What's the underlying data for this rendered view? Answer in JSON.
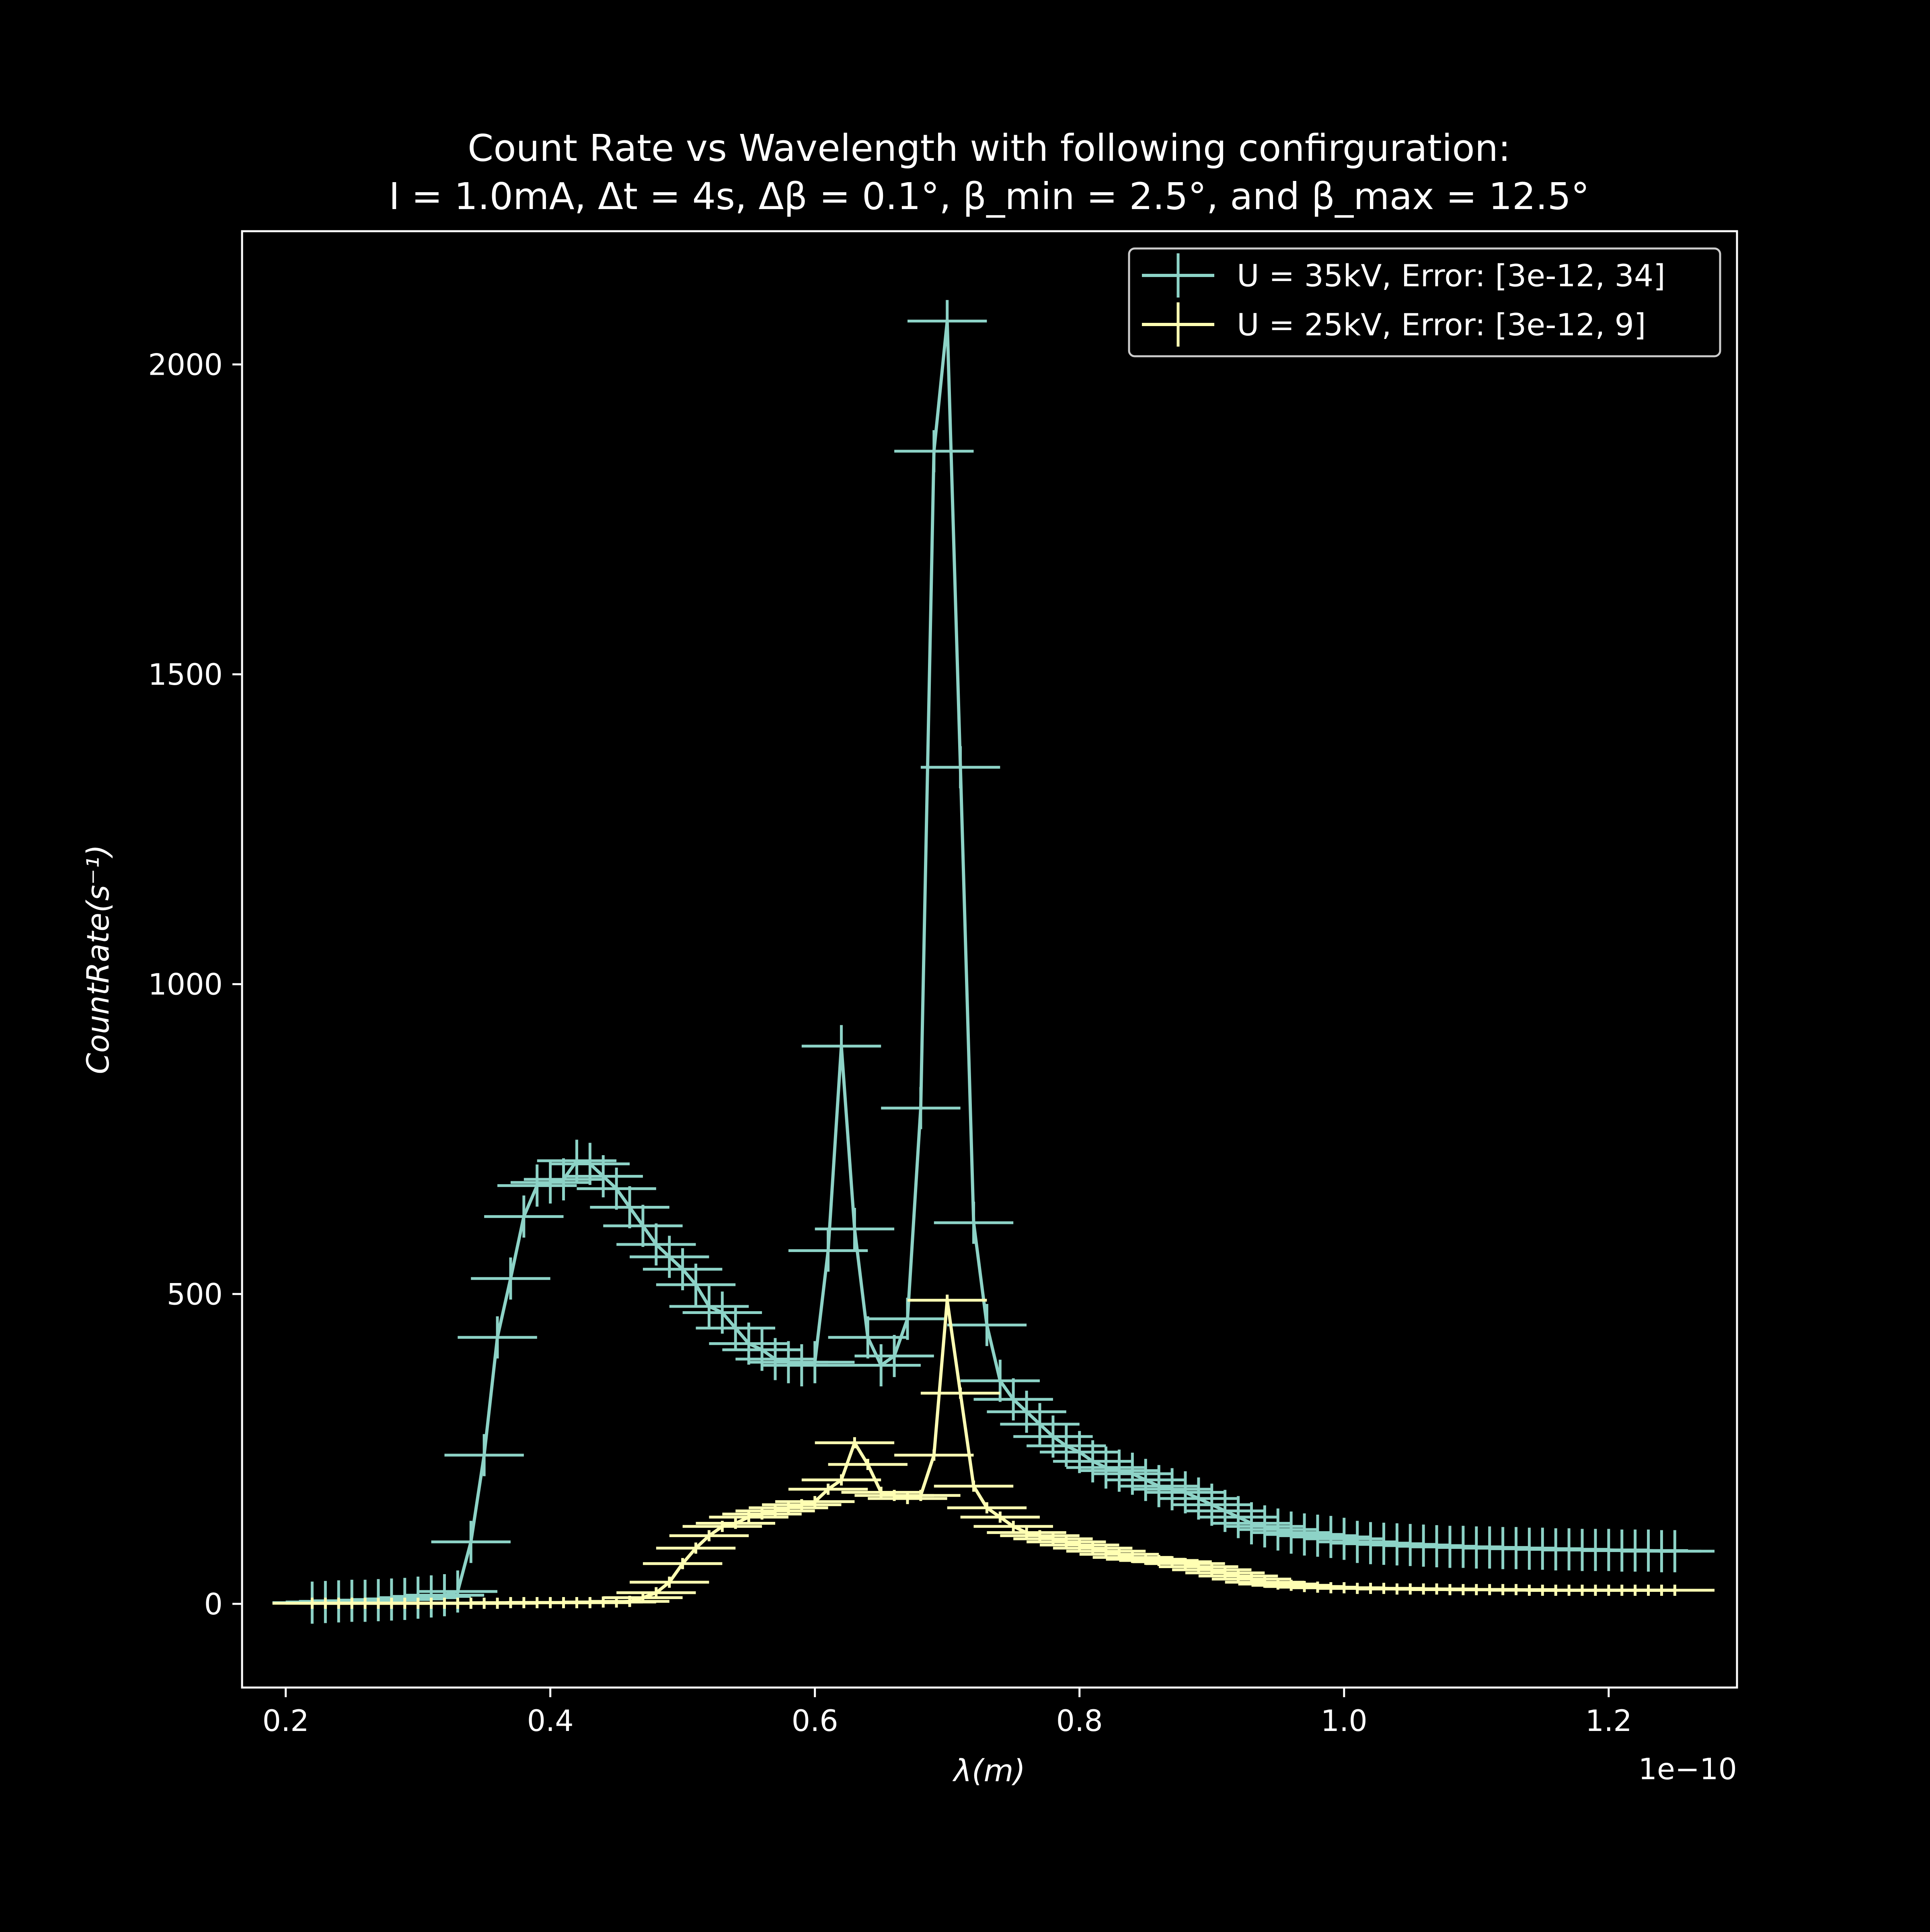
{
  "chart_data": {
    "type": "line",
    "title_line1": "Count Rate vs Wavelength with following confirguration:",
    "title_line2": "I = 1.0mA, Δt = 4s, Δβ = 0.1°, β_min = 2.5°,  and β_max = 12.5°",
    "xlabel": "λ(m)",
    "ylabel": "CountRate(s⁻¹)",
    "x_offset_label": "1e−10",
    "xlim": [
      0.167,
      1.297
    ],
    "ylim": [
      -135,
      2215
    ],
    "x_ticks": [
      0.2,
      0.4,
      0.6,
      0.8,
      1.0,
      1.2
    ],
    "x_tick_labels": [
      "0.2",
      "0.4",
      "0.6",
      "0.8",
      "1.0",
      "1.2"
    ],
    "y_ticks": [
      0,
      500,
      1000,
      1500,
      2000
    ],
    "y_tick_labels": [
      "0",
      "500",
      "1000",
      "1500",
      "2000"
    ],
    "grid": false,
    "legend_position": "top-right",
    "x_error": 0.03,
    "series": [
      {
        "name": "U = 35kV, Error: [3e-12, 34]",
        "color": "#8dd3c7",
        "y_error": 34,
        "x": [
          0.22,
          0.23,
          0.24,
          0.25,
          0.26,
          0.27,
          0.28,
          0.29,
          0.3,
          0.31,
          0.32,
          0.33,
          0.34,
          0.35,
          0.36,
          0.37,
          0.38,
          0.39,
          0.4,
          0.41,
          0.42,
          0.43,
          0.44,
          0.45,
          0.46,
          0.47,
          0.48,
          0.49,
          0.5,
          0.51,
          0.52,
          0.53,
          0.54,
          0.55,
          0.56,
          0.57,
          0.58,
          0.59,
          0.6,
          0.61,
          0.62,
          0.63,
          0.64,
          0.65,
          0.66,
          0.67,
          0.68,
          0.69,
          0.7,
          0.71,
          0.72,
          0.73,
          0.74,
          0.75,
          0.76,
          0.77,
          0.78,
          0.79,
          0.8,
          0.81,
          0.82,
          0.83,
          0.84,
          0.85,
          0.86,
          0.87,
          0.88,
          0.89,
          0.9,
          0.91,
          0.92,
          0.93,
          0.94,
          0.95,
          0.96,
          0.97,
          0.98,
          0.99,
          1.0,
          1.01,
          1.02,
          1.03,
          1.04,
          1.05,
          1.06,
          1.07,
          1.08,
          1.09,
          1.1,
          1.11,
          1.12,
          1.13,
          1.14,
          1.15,
          1.16,
          1.17,
          1.18,
          1.19,
          1.2,
          1.21,
          1.22,
          1.23,
          1.24,
          1.25
        ],
        "y": [
          2,
          3,
          4,
          5,
          5,
          6,
          7,
          8,
          10,
          12,
          14,
          20,
          100,
          240,
          430,
          525,
          625,
          675,
          680,
          685,
          715,
          710,
          690,
          670,
          640,
          610,
          580,
          560,
          540,
          515,
          480,
          470,
          445,
          420,
          410,
          395,
          390,
          385,
          390,
          570,
          900,
          605,
          430,
          385,
          400,
          460,
          800,
          1860,
          2070,
          1350,
          615,
          450,
          360,
          330,
          310,
          290,
          270,
          255,
          245,
          230,
          220,
          215,
          210,
          200,
          190,
          185,
          180,
          170,
          160,
          150,
          140,
          130,
          125,
          120,
          115,
          112,
          110,
          108,
          105,
          100,
          98,
          97,
          96,
          95,
          94,
          93,
          92,
          92,
          91,
          91,
          90,
          90,
          89,
          89,
          88,
          88,
          87,
          87,
          87,
          86,
          86,
          86,
          85,
          85
        ]
      },
      {
        "name": "U = 25kV, Error: [3e-12, 9]",
        "color": "#ffffb3",
        "y_error": 9,
        "x": [
          0.22,
          0.23,
          0.24,
          0.25,
          0.26,
          0.27,
          0.28,
          0.29,
          0.3,
          0.31,
          0.32,
          0.33,
          0.34,
          0.35,
          0.36,
          0.37,
          0.38,
          0.39,
          0.4,
          0.41,
          0.42,
          0.43,
          0.44,
          0.45,
          0.46,
          0.47,
          0.48,
          0.49,
          0.5,
          0.51,
          0.52,
          0.53,
          0.54,
          0.55,
          0.56,
          0.57,
          0.58,
          0.59,
          0.6,
          0.61,
          0.62,
          0.63,
          0.64,
          0.65,
          0.66,
          0.67,
          0.68,
          0.69,
          0.7,
          0.71,
          0.72,
          0.73,
          0.74,
          0.75,
          0.76,
          0.77,
          0.78,
          0.79,
          0.8,
          0.81,
          0.82,
          0.83,
          0.84,
          0.85,
          0.86,
          0.87,
          0.88,
          0.89,
          0.9,
          0.91,
          0.92,
          0.93,
          0.94,
          0.95,
          0.96,
          0.97,
          0.98,
          0.99,
          1.0,
          1.01,
          1.02,
          1.03,
          1.04,
          1.05,
          1.06,
          1.07,
          1.08,
          1.09,
          1.1,
          1.11,
          1.12,
          1.13,
          1.14,
          1.15,
          1.16,
          1.17,
          1.18,
          1.19,
          1.2,
          1.21,
          1.22,
          1.23,
          1.24,
          1.25
        ],
        "y": [
          1,
          1,
          1,
          1,
          1,
          1,
          1,
          1,
          1,
          1,
          1,
          1,
          1,
          1,
          1,
          2,
          2,
          2,
          2,
          2,
          2,
          2,
          3,
          3,
          4,
          10,
          18,
          35,
          65,
          90,
          110,
          125,
          130,
          140,
          145,
          150,
          155,
          160,
          165,
          185,
          200,
          260,
          225,
          180,
          175,
          170,
          175,
          240,
          490,
          340,
          190,
          155,
          140,
          125,
          115,
          110,
          105,
          100,
          95,
          90,
          85,
          80,
          75,
          72,
          70,
          68,
          65,
          60,
          55,
          50,
          45,
          40,
          35,
          32,
          30,
          28,
          27,
          26,
          26,
          25,
          25,
          25,
          24,
          24,
          24,
          24,
          23,
          23,
          23,
          23,
          23,
          23,
          22,
          22,
          22,
          22,
          22,
          22,
          22,
          22,
          22,
          22,
          22,
          22
        ]
      }
    ]
  }
}
